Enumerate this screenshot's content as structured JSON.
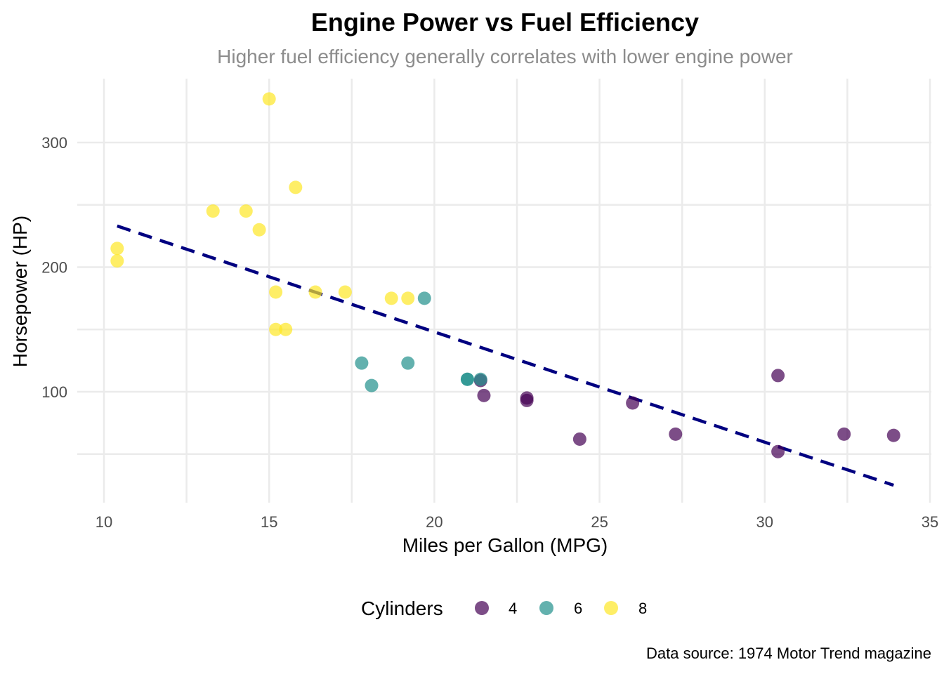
{
  "chart_data": {
    "type": "scatter",
    "title": "Engine Power vs Fuel Efficiency",
    "subtitle": "Higher fuel efficiency generally correlates with lower engine power",
    "xlabel": "Miles per Gallon (MPG)",
    "ylabel": "Horsepower (HP)",
    "caption": "Data source: 1974 Motor Trend magazine",
    "xlim": [
      9.6,
      35.0
    ],
    "ylim": [
      12,
      348
    ],
    "x_ticks": [
      10,
      15,
      20,
      25,
      30,
      35
    ],
    "y_ticks": [
      100,
      200,
      300
    ],
    "grid": true,
    "legend": {
      "title": "Cylinders",
      "placement": "bottom",
      "entries": [
        "4",
        "6",
        "8"
      ]
    },
    "series": [
      {
        "name": "4",
        "color": "#440154",
        "points": [
          [
            22.8,
            93
          ],
          [
            24.4,
            62
          ],
          [
            22.8,
            95
          ],
          [
            32.4,
            66
          ],
          [
            30.4,
            52
          ],
          [
            33.9,
            65
          ],
          [
            21.5,
            97
          ],
          [
            27.3,
            66
          ],
          [
            26.0,
            91
          ],
          [
            30.4,
            113
          ],
          [
            21.4,
            109
          ]
        ]
      },
      {
        "name": "6",
        "color": "#21908C",
        "points": [
          [
            21.0,
            110
          ],
          [
            21.0,
            110
          ],
          [
            21.4,
            110
          ],
          [
            18.1,
            105
          ],
          [
            19.2,
            123
          ],
          [
            17.8,
            123
          ],
          [
            19.7,
            175
          ]
        ]
      },
      {
        "name": "8",
        "color": "#FDE725",
        "points": [
          [
            18.7,
            175
          ],
          [
            14.3,
            245
          ],
          [
            16.4,
            180
          ],
          [
            17.3,
            180
          ],
          [
            15.2,
            180
          ],
          [
            10.4,
            205
          ],
          [
            10.4,
            215
          ],
          [
            14.7,
            230
          ],
          [
            15.5,
            150
          ],
          [
            15.2,
            150
          ],
          [
            13.3,
            245
          ],
          [
            19.2,
            175
          ],
          [
            15.8,
            264
          ],
          [
            15.0,
            335
          ]
        ]
      }
    ],
    "trend_line": {
      "style": "dashed",
      "color": "#000080",
      "x": [
        10.4,
        33.9
      ],
      "y": [
        233,
        25
      ]
    }
  }
}
